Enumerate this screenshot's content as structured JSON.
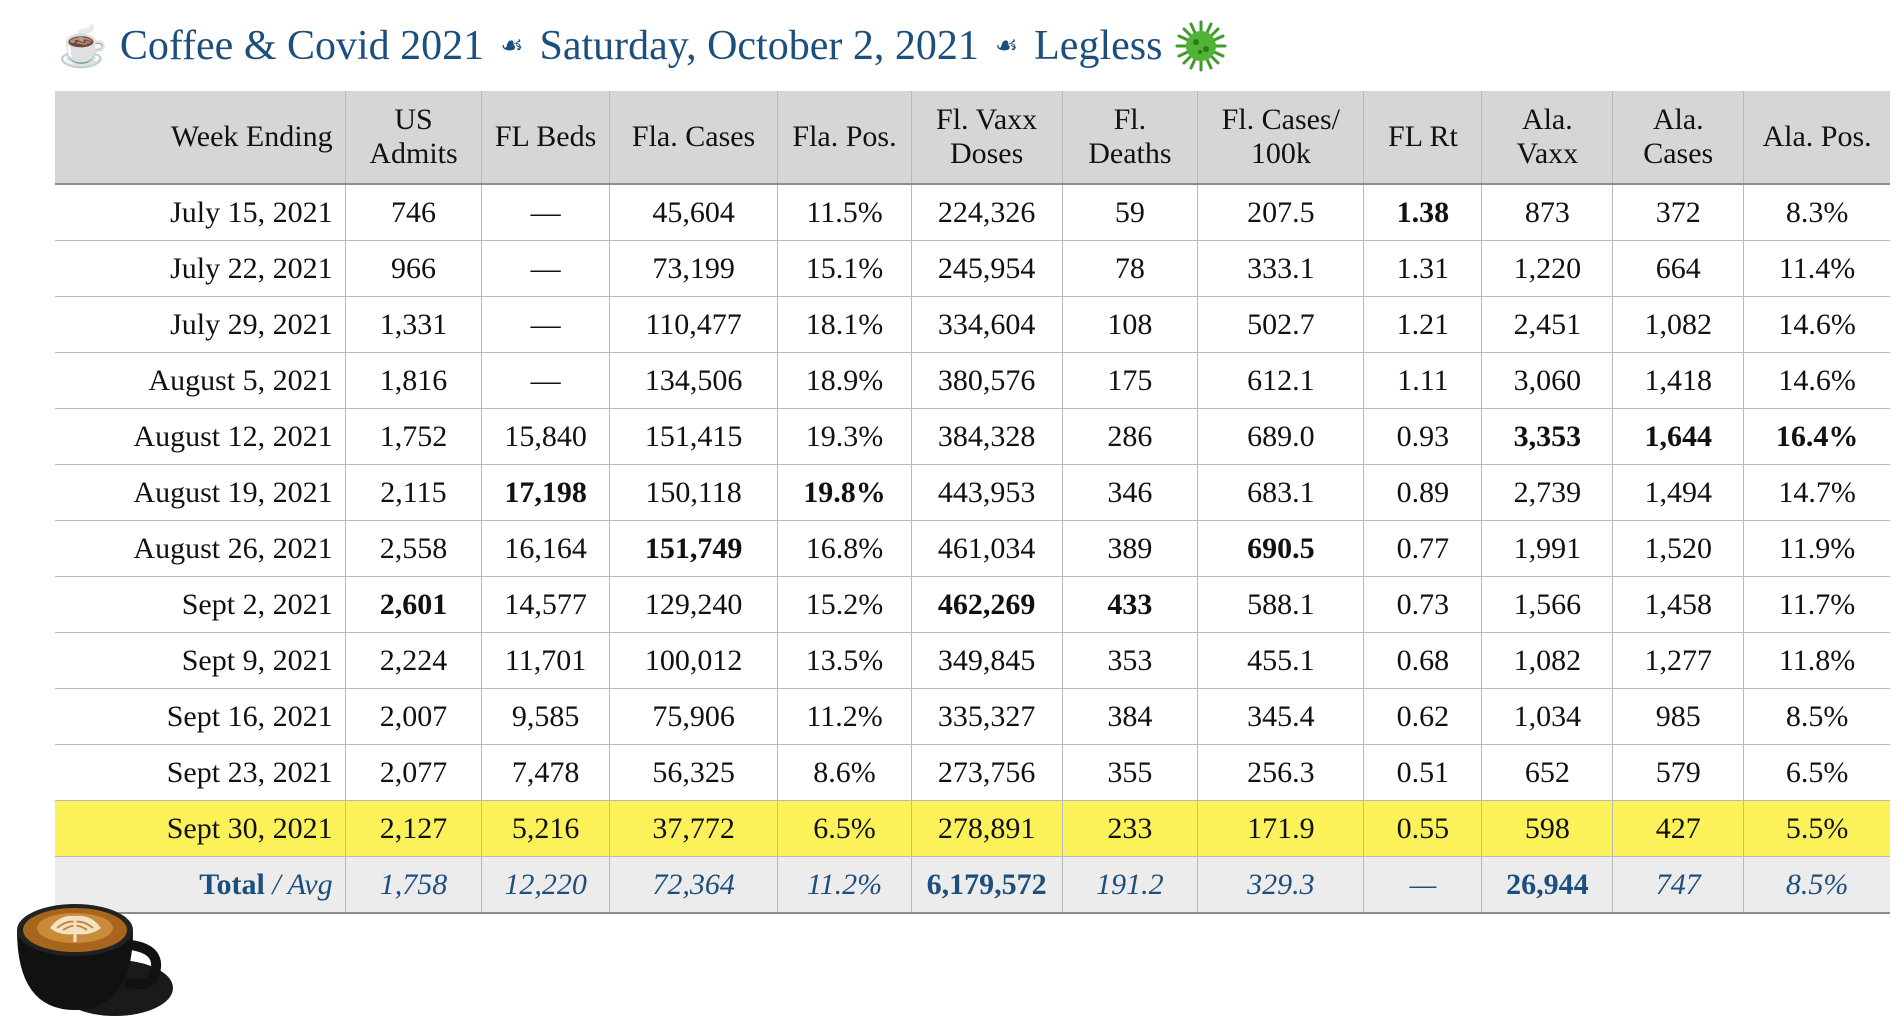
{
  "header": {
    "title_part1": "Coffee & Covid 2021",
    "title_part2": "Saturday, October 2, 2021",
    "title_part3": "Legless",
    "icons": [
      "coffee-cup-icon",
      "fleuron-icon",
      "virus-icon"
    ]
  },
  "table": {
    "columns": [
      "Week Ending",
      "US Admits",
      "FL Beds",
      "Fla. Cases",
      "Fla. Pos.",
      "Fl. Vaxx Doses",
      "Fl. Deaths",
      "Fl. Cases/ 100k",
      "FL Rt",
      "Ala. Vaxx",
      "Ala. Cases",
      "Ala. Pos."
    ],
    "rows": [
      {
        "cells": [
          "July 15, 2021",
          "746",
          "—",
          "45,604",
          "11.5%",
          "224,326",
          "59",
          "207.5",
          "1.38",
          "873",
          "372",
          "8.3%"
        ],
        "bold": [
          8
        ]
      },
      {
        "cells": [
          "July 22, 2021",
          "966",
          "—",
          "73,199",
          "15.1%",
          "245,954",
          "78",
          "333.1",
          "1.31",
          "1,220",
          "664",
          "11.4%"
        ],
        "bold": []
      },
      {
        "cells": [
          "July 29, 2021",
          "1,331",
          "—",
          "110,477",
          "18.1%",
          "334,604",
          "108",
          "502.7",
          "1.21",
          "2,451",
          "1,082",
          "14.6%"
        ],
        "bold": []
      },
      {
        "cells": [
          "August 5, 2021",
          "1,816",
          "—",
          "134,506",
          "18.9%",
          "380,576",
          "175",
          "612.1",
          "1.11",
          "3,060",
          "1,418",
          "14.6%"
        ],
        "bold": []
      },
      {
        "cells": [
          "August 12, 2021",
          "1,752",
          "15,840",
          "151,415",
          "19.3%",
          "384,328",
          "286",
          "689.0",
          "0.93",
          "3,353",
          "1,644",
          "16.4%"
        ],
        "bold": [
          9,
          10,
          11
        ]
      },
      {
        "cells": [
          "August 19, 2021",
          "2,115",
          "17,198",
          "150,118",
          "19.8%",
          "443,953",
          "346",
          "683.1",
          "0.89",
          "2,739",
          "1,494",
          "14.7%"
        ],
        "bold": [
          2,
          4
        ]
      },
      {
        "cells": [
          "August 26, 2021",
          "2,558",
          "16,164",
          "151,749",
          "16.8%",
          "461,034",
          "389",
          "690.5",
          "0.77",
          "1,991",
          "1,520",
          "11.9%"
        ],
        "bold": [
          3,
          7
        ]
      },
      {
        "cells": [
          "Sept 2, 2021",
          "2,601",
          "14,577",
          "129,240",
          "15.2%",
          "462,269",
          "433",
          "588.1",
          "0.73",
          "1,566",
          "1,458",
          "11.7%"
        ],
        "bold": [
          1,
          5,
          6
        ]
      },
      {
        "cells": [
          "Sept 9, 2021",
          "2,224",
          "11,701",
          "100,012",
          "13.5%",
          "349,845",
          "353",
          "455.1",
          "0.68",
          "1,082",
          "1,277",
          "11.8%"
        ],
        "bold": []
      },
      {
        "cells": [
          "Sept 16, 2021",
          "2,007",
          "9,585",
          "75,906",
          "11.2%",
          "335,327",
          "384",
          "345.4",
          "0.62",
          "1,034",
          "985",
          "8.5%"
        ],
        "bold": []
      },
      {
        "cells": [
          "Sept 23, 2021",
          "2,077",
          "7,478",
          "56,325",
          "8.6%",
          "273,756",
          "355",
          "256.3",
          "0.51",
          "652",
          "579",
          "6.5%"
        ],
        "bold": []
      },
      {
        "cells": [
          "Sept 30, 2021",
          "2,127",
          "5,216",
          "37,772",
          "6.5%",
          "278,891",
          "233",
          "171.9",
          "0.55",
          "598",
          "427",
          "5.5%"
        ],
        "bold": [],
        "highlight": true
      }
    ],
    "total": {
      "label_bold": "Total",
      "label_italic": " / Avg",
      "cells": [
        "1,758",
        "12,220",
        "72,364",
        "11.2%",
        "6,179,572",
        "191.2",
        "329.3",
        "—",
        "26,944",
        "747",
        "8.5%"
      ],
      "bold": [
        4,
        8
      ]
    },
    "colors": {
      "header_bg": "#d6d6d6",
      "highlight": "#fbf25a",
      "total_text": "#1c4f7e",
      "total_bg": "#ececec"
    }
  },
  "decor": {
    "photo": "latte-art-cup-icon"
  }
}
